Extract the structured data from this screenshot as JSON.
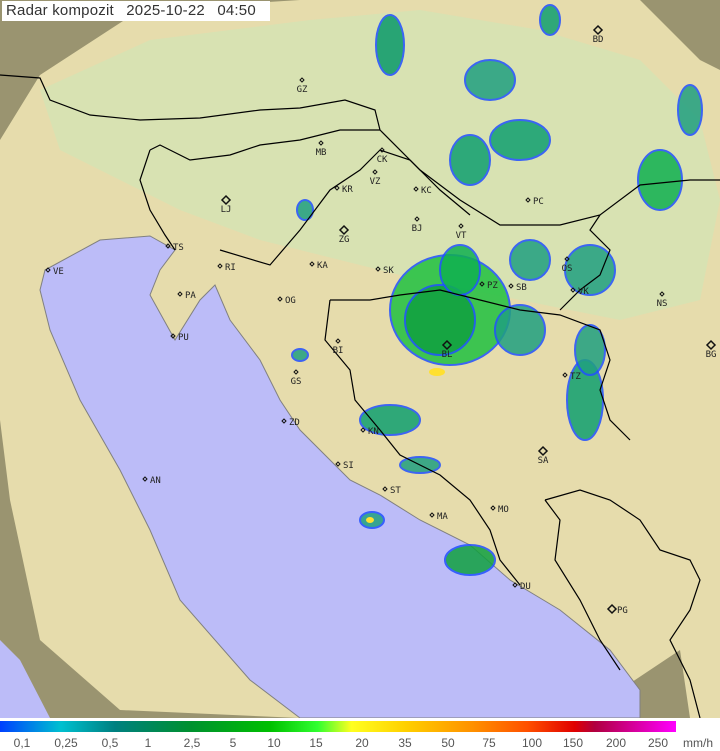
{
  "header": {
    "title": "Radar kompozit",
    "date": "2025-10-22",
    "time": "04:50"
  },
  "map": {
    "colors": {
      "sea": "#bcbcf8",
      "land": "#e8dcaa",
      "lowland": "#d6e6b8",
      "outside_coverage": "#9a9470",
      "border": "#000000",
      "coast": "#808080"
    },
    "cities": [
      "GZ",
      "BD",
      "MB",
      "CK",
      "VZ",
      "KR",
      "KC",
      "PC",
      "LJ",
      "ZG",
      "BJ",
      "VT",
      "TS",
      "VE",
      "RI",
      "KA",
      "SK",
      "OS",
      "NS",
      "PA",
      "OG",
      "PZ",
      "SB",
      "VK",
      "PU",
      "BL",
      "BG",
      "BI",
      "GS",
      "ZD",
      "KN",
      "TZ",
      "SA",
      "SI",
      "AN",
      "ST",
      "MA",
      "MO",
      "DU",
      "PG"
    ]
  },
  "legend": {
    "labels": [
      "0,1",
      "0,25",
      "0,5",
      "1",
      "2,5",
      "5",
      "10",
      "15",
      "20",
      "35",
      "50",
      "75",
      "100",
      "150",
      "200",
      "250"
    ],
    "unit": "mm/h"
  }
}
